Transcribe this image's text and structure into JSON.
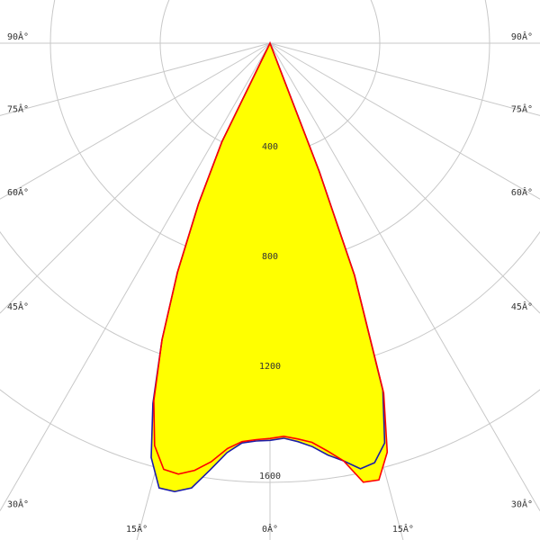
{
  "chart_data": {
    "type": "polar",
    "x": [
      -27,
      -26,
      -24,
      -22,
      -20,
      -18,
      -16,
      -14,
      -12,
      -10,
      -8,
      -6,
      -4,
      -2,
      0,
      2,
      4,
      6,
      8,
      10,
      12,
      14,
      16,
      18,
      20,
      21,
      22
    ],
    "series": [
      {
        "color": "#1c1ca8",
        "values": [
          0,
          400,
          640,
          900,
          1150,
          1380,
          1570,
          1670,
          1670,
          1645,
          1570,
          1500,
          1460,
          1450,
          1447,
          1440,
          1455,
          1478,
          1515,
          1545,
          1585,
          1575,
          1515,
          1330,
          900,
          500,
          0
        ]
      },
      {
        "color": "#ff0000",
        "values": [
          0,
          400,
          640,
          900,
          1150,
          1370,
          1525,
          1600,
          1605,
          1580,
          1540,
          1485,
          1455,
          1445,
          1440,
          1433,
          1445,
          1462,
          1500,
          1545,
          1635,
          1640,
          1550,
          1340,
          900,
          500,
          0
        ]
      }
    ],
    "fill_color": "#ffff00",
    "rlim": [
      0,
      1600
    ],
    "rticks": [
      400,
      800,
      1200,
      1600
    ],
    "angle_ticks": [
      {
        "value": 0,
        "label": "0Â°"
      },
      {
        "value": 15,
        "label": "15Â°"
      },
      {
        "value": 30,
        "label": "30Â°"
      },
      {
        "value": 45,
        "label": "45Â°"
      },
      {
        "value": 60,
        "label": "60Â°"
      },
      {
        "value": 75,
        "label": "75Â°"
      },
      {
        "value": 90,
        "label": "90Â°"
      }
    ]
  }
}
